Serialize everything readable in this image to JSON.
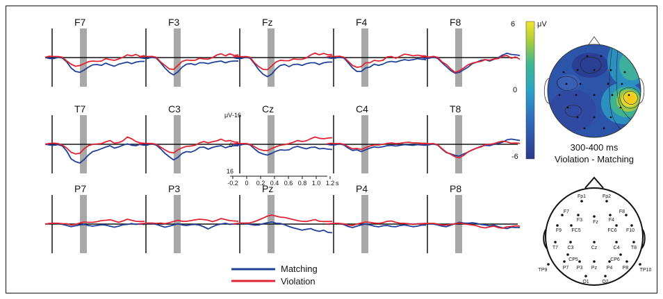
{
  "chart_data": {
    "type": "line",
    "channels": [
      {
        "name": "F7",
        "matching": [
          0,
          -0.5,
          -0.6,
          0.2,
          -0.3,
          -2.5,
          -6,
          -8,
          -8.5,
          -7.2,
          -5.5,
          -4.2,
          -4,
          -4.5,
          -3.2,
          -4.2,
          -5,
          -3.8,
          -3.2,
          -2.6,
          -3.5,
          -2.6,
          -2.2,
          -2.2
        ],
        "violation": [
          0.2,
          0.8,
          0.6,
          0.6,
          0.2,
          -2,
          -3.8,
          -5,
          -4.6,
          -3.5,
          -2.4,
          -2,
          -2.2,
          -2,
          -0.6,
          -1.2,
          -1.6,
          -0.8,
          0.2,
          1.6,
          1,
          1.8,
          0.6,
          1.2
        ]
      },
      {
        "name": "F3",
        "matching": [
          0,
          -0.4,
          -0.5,
          0.2,
          -0.3,
          -3,
          -6,
          -8.5,
          -10,
          -8.2,
          -5.5,
          -3.8,
          -3.5,
          -4.2,
          -3,
          -3,
          -3.5,
          -2.8,
          -2.3,
          -2,
          -3,
          -2.2,
          -2,
          -2
        ],
        "violation": [
          0.2,
          0.8,
          0.6,
          0.7,
          0.2,
          -2.5,
          -4.5,
          -6.5,
          -6.8,
          -4.5,
          -2.2,
          -1.4,
          -1.6,
          -1.5,
          -0.4,
          -0.8,
          -0.9,
          0,
          1.5,
          2.2,
          1,
          2.2,
          1.2,
          1.6
        ]
      },
      {
        "name": "Fz",
        "matching": [
          0,
          -0.5,
          -0.5,
          0.2,
          -0.4,
          -3.5,
          -7,
          -9.6,
          -11,
          -9.5,
          -6.5,
          -4.5,
          -4,
          -5.2,
          -4,
          -3.8,
          -4.5,
          -3.5,
          -3,
          -3,
          -4,
          -3,
          -2.6,
          -2.6
        ],
        "violation": [
          0.2,
          0.8,
          0.5,
          0.6,
          0.2,
          -3,
          -5.2,
          -6.8,
          -7,
          -4.8,
          -2.5,
          -1.5,
          -1.8,
          -1.8,
          -0.8,
          -1,
          -1,
          -0.2,
          1.5,
          2.6,
          1.6,
          2.4,
          1.6,
          1.8
        ]
      },
      {
        "name": "F4",
        "matching": [
          0,
          -0.4,
          -0.3,
          0.2,
          -0.3,
          -3,
          -6,
          -8,
          -8,
          -6,
          -5.5,
          -3.8,
          -4.5,
          -3.8,
          -2.6,
          -2.2,
          -2.6,
          -1.8,
          -1.2,
          -1.6,
          -1.2,
          -0.6,
          -1,
          -1.2
        ],
        "violation": [
          0.3,
          0.9,
          0.6,
          0.8,
          0.2,
          -2.2,
          -4.5,
          -5.6,
          -5.2,
          -3,
          -3,
          -1.6,
          -2,
          -1.6,
          0.4,
          0.6,
          -0.4,
          0.8,
          2,
          1.6,
          1,
          1.4,
          1,
          1
        ]
      },
      {
        "name": "F8",
        "matching": [
          0,
          -0.4,
          -0.4,
          0.3,
          -0.5,
          -3,
          -5.2,
          -7.5,
          -9,
          -8.5,
          -7,
          -5.5,
          -3.5,
          -2.6,
          -1.6,
          -1.2,
          -2,
          -1,
          0,
          1.5,
          2.5,
          1.8,
          1.6,
          1.2
        ],
        "violation": [
          0.2,
          0.6,
          0.3,
          0.7,
          0.1,
          -2.5,
          -4,
          -6.5,
          -8.5,
          -7.6,
          -6,
          -4.2,
          -3.2,
          -2.6,
          -2.2,
          -1.2,
          -1.5,
          -0.8,
          -0.6,
          0.8,
          1.2,
          -0.4,
          0.4,
          -1
        ]
      },
      {
        "name": "T7",
        "matching": [
          0,
          -0.4,
          -0.5,
          -0.2,
          -1,
          -4,
          -8.4,
          -10,
          -10.8,
          -8.8,
          -6.2,
          -4.2,
          -3.5,
          -2.5,
          -1.6,
          -0.8,
          -2.2,
          -1.5,
          -0.5,
          0.3,
          -0.5,
          -0.8,
          0.1,
          -0.4
        ],
        "violation": [
          0.1,
          0.5,
          0.7,
          0.4,
          -0.5,
          -2.2,
          -4.6,
          -5.5,
          -5.2,
          -2.6,
          -0.8,
          0,
          0.2,
          0.4,
          1.4,
          2.2,
          0.6,
          1,
          2,
          4.2,
          3.2,
          1.6,
          0.8,
          0.6
        ]
      },
      {
        "name": "C3",
        "matching": [
          0,
          -0.5,
          -0.4,
          0.3,
          -0.5,
          -2.6,
          -5.2,
          -7.2,
          -9,
          -7.5,
          -5.2,
          -4.2,
          -4.5,
          -3.5,
          -1.8,
          -1.6,
          -2.8,
          -1.8,
          -1.2,
          -0.8,
          -2,
          -1.2,
          -0.8,
          -0.8
        ],
        "violation": [
          0.2,
          0.6,
          0.5,
          0.5,
          0,
          -1.6,
          -3.2,
          -4.5,
          -5,
          -3.2,
          -2,
          -1.2,
          -1,
          -0.5,
          0.8,
          1.6,
          0.8,
          1.5,
          2,
          3,
          1.8,
          2.2,
          1.4,
          1.2
        ]
      },
      {
        "name": "Cz",
        "matching": [
          0,
          -0.4,
          -0.3,
          0.3,
          -0.4,
          -2.6,
          -4.6,
          -5.6,
          -6.2,
          -5.2,
          -4,
          -3.2,
          -3.4,
          -3.2,
          -1.8,
          -1.2,
          -2,
          -2.6,
          -1.8,
          -1.6,
          -2.6,
          -2.4,
          -2.8,
          -3
        ],
        "violation": [
          0.2,
          0.6,
          0.4,
          0.5,
          0,
          -1.4,
          -2.8,
          -3.5,
          -3.6,
          -2.4,
          -1.4,
          -0.5,
          -0.2,
          0.4,
          1.2,
          2.2,
          1.6,
          2,
          3.2,
          4.2,
          3.5,
          3.2,
          3.6,
          3.8
        ]
      },
      {
        "name": "C4",
        "matching": [
          0,
          -0.4,
          -0.3,
          0.2,
          -0.4,
          -2.2,
          -3.5,
          -3.2,
          -4.2,
          -3.2,
          -2.2,
          -1.5,
          -1.8,
          -1.4,
          -0.8,
          -0.6,
          -1,
          -0.6,
          -0.2,
          -0.4,
          -0.6,
          -0.2,
          -0.4,
          -0.6
        ],
        "violation": [
          0.2,
          0.6,
          0.4,
          0.5,
          0,
          -1.4,
          -2.6,
          -2.4,
          -3,
          -2,
          -1,
          -0.4,
          -0.4,
          0,
          0.5,
          0.8,
          0.4,
          0.6,
          1,
          1.2,
          0.8,
          0.8,
          0.6,
          0.6
        ]
      },
      {
        "name": "T8",
        "matching": [
          0,
          -0.4,
          -0.3,
          0.2,
          -0.5,
          -2.8,
          -4.8,
          -5.5,
          -6.4,
          -6.8,
          -5.5,
          -4.5,
          -3.2,
          -2.2,
          -1.2,
          -0.6,
          -0.8,
          0,
          0.5,
          1.2,
          2.6,
          3,
          2.6,
          2.2
        ],
        "violation": [
          0.2,
          0.5,
          0.3,
          0.5,
          -0.3,
          -2.5,
          -4.5,
          -5.8,
          -7.2,
          -7.8,
          -6.4,
          -4.4,
          -3.2,
          -2.2,
          -1.5,
          -0.2,
          0,
          0.4,
          1.2,
          1.8,
          1.4,
          0.6,
          0.8,
          0.5
        ]
      },
      {
        "name": "P7",
        "matching": [
          0,
          0.3,
          0.5,
          0.2,
          -0.2,
          -0.8,
          -1.5,
          -1,
          -0.5,
          -0.2,
          -0.8,
          -1.2,
          -0.8,
          -0.4,
          -0.6,
          -1.2,
          -1.8,
          -1.2,
          -0.4,
          -0.2,
          0.3,
          -0.2,
          0.2,
          -0.3
        ],
        "violation": [
          0,
          0.4,
          0.5,
          0.5,
          0.2,
          0.2,
          -0.5,
          -0.2,
          0.6,
          1.2,
          1,
          1,
          1.4,
          2,
          2.2,
          2.5,
          1.8,
          1,
          1.8,
          2.8,
          2.2,
          1.6,
          1.5,
          1.6
        ]
      },
      {
        "name": "P3",
        "matching": [
          0,
          0.2,
          0.5,
          0.3,
          -0.2,
          -1,
          -1.8,
          -1.2,
          -0.5,
          0.2,
          -0.5,
          -0.8,
          -0.4,
          -0.2,
          -0.6,
          -1.6,
          -2.8,
          -1.5,
          -0.5,
          0,
          0.5,
          -0.2,
          0.2,
          -0.2
        ],
        "violation": [
          0,
          0.4,
          0.6,
          0.6,
          0.4,
          0.6,
          0.2,
          0.8,
          1.5,
          2.2,
          1.6,
          1.6,
          2,
          2.5,
          2.8,
          2.6,
          2.2,
          1.4,
          2.2,
          3.2,
          2.6,
          2,
          1.8,
          1.6
        ]
      },
      {
        "name": "Pz",
        "matching": [
          0,
          0.2,
          0.5,
          0.3,
          -0.2,
          -0.6,
          -0.5,
          0.2,
          0.8,
          1.2,
          0.5,
          0.4,
          -0.4,
          -1.4,
          -2.2,
          -2.8,
          -3.5,
          -3,
          -2.6,
          -3.6,
          -4.2,
          -3.5,
          -4.8,
          -5
        ],
        "violation": [
          0,
          0.4,
          0.6,
          0.6,
          0.7,
          1.4,
          2.4,
          3.5,
          4.6,
          5.2,
          4.6,
          4,
          3.8,
          3.2,
          2.6,
          2,
          1.6,
          1.5,
          2,
          2.6,
          1.6,
          1.5,
          1.5,
          1.6
        ]
      },
      {
        "name": "P4",
        "matching": [
          0,
          0.1,
          0.4,
          0.2,
          -0.3,
          -1.4,
          -2,
          -1.2,
          -0.5,
          0,
          -0.5,
          -1.2,
          -1.6,
          -1,
          -0.8,
          -1.4,
          -1.5,
          -0.8,
          -0.5,
          -1,
          -1.5,
          -1.2,
          -0.6,
          -0.6
        ],
        "violation": [
          0,
          0.3,
          0.5,
          0.4,
          0.1,
          -0.5,
          -0.8,
          0,
          0.6,
          1.2,
          1,
          0.6,
          0.4,
          0.8,
          1.6,
          1.8,
          1,
          0.5,
          0.4,
          0.2,
          -0.2,
          0.2,
          0.3,
          0.4
        ]
      },
      {
        "name": "P8",
        "matching": [
          0,
          0.1,
          0.3,
          0,
          -0.5,
          -1.2,
          -1.5,
          -0.6,
          0.2,
          1,
          0.6,
          0.5,
          0.8,
          0.4,
          -0.2,
          -0.5,
          -1,
          -0.6,
          -1.5,
          -2.2,
          -2.6,
          -1.8,
          -2,
          -2
        ],
        "violation": [
          0,
          0.3,
          0.4,
          0.4,
          0,
          -0.5,
          -0.5,
          -0.2,
          0.2,
          0.6,
          0.2,
          -0.2,
          -0.5,
          -1,
          -1.8,
          -2.2,
          -1.6,
          -1.2,
          -2,
          -2.4,
          -1.6,
          -1.4,
          -1,
          -1.2
        ]
      }
    ],
    "time_s": [
      -0.2,
      -0.138,
      -0.076,
      -0.013,
      0.049,
      0.111,
      0.173,
      0.236,
      0.298,
      0.36,
      0.422,
      0.484,
      0.547,
      0.609,
      0.671,
      0.733,
      0.796,
      0.858,
      0.92,
      0.982,
      1.044,
      1.107,
      1.169,
      1.231
    ],
    "xlim": [
      -0.2,
      1.2
    ],
    "ylim": [
      16,
      -16
    ],
    "highlight_window_s": [
      0.3,
      0.4
    ],
    "axis_example": {
      "y_unit": "μV",
      "y_top_label": "-16",
      "y_zero_label": "0",
      "y_bottom_label": "16",
      "x_ticks": [
        "-0.2",
        "0",
        "0.2",
        "0.4",
        "0.6",
        "0.8",
        "1.0",
        "1.2"
      ],
      "x_unit": "s"
    },
    "series": [
      {
        "name": "Matching",
        "color": "#1f3f99"
      },
      {
        "name": "Violation",
        "color": "#e02231"
      }
    ],
    "legend_position": "bottom-center"
  },
  "topomap": {
    "max_label": "6",
    "unit": "μV",
    "zero_label": "0",
    "min_label": "-6",
    "window_label": "300-400 ms",
    "contrast_label": "Violation - Matching"
  },
  "electrodes": [
    "Fp1",
    "Fp2",
    "F7",
    "F3",
    "Fz",
    "F4",
    "F8",
    "F9",
    "FC5",
    "FC6",
    "F10",
    "T7",
    "C3",
    "Cz",
    "C4",
    "T8",
    "CP5",
    "CP6",
    "TP9",
    "P7",
    "P3",
    "Pz",
    "P4",
    "P8",
    "TP10",
    "O1",
    "O2"
  ]
}
